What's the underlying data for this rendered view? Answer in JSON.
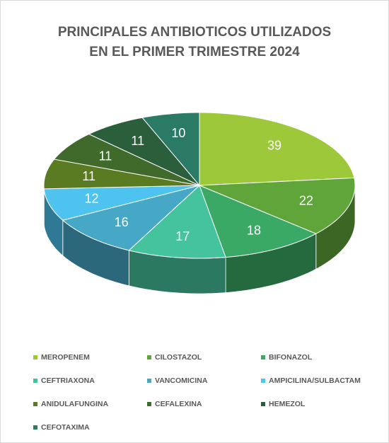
{
  "chart_data": {
    "type": "pie3d",
    "title": [
      "PRINCIPALES ANTIBIOTICOS UTILIZADOS",
      "EN EL PRIMER TRIMESTRE 2024"
    ],
    "categories": [
      "MEROPENEM",
      "CILOSTAZOL",
      "BIFONAZOL",
      "CEFTRIAXONA",
      "VANCOMICINA",
      "AMPICILINA/SULBACTAM",
      "ANIDULAFUNGINA",
      "CEFALEXINA",
      "HEMEZOL",
      "CEFOTAXIMA"
    ],
    "values": [
      39,
      22,
      18,
      17,
      16,
      12,
      11,
      11,
      11,
      10
    ],
    "colors": [
      "#9cc83a",
      "#5fa53a",
      "#3ba966",
      "#45c39d",
      "#46a7c6",
      "#4ec3ef",
      "#5b7b23",
      "#3f6a2b",
      "#2b5e3b",
      "#2b7a66"
    ],
    "legend": "bottom"
  }
}
